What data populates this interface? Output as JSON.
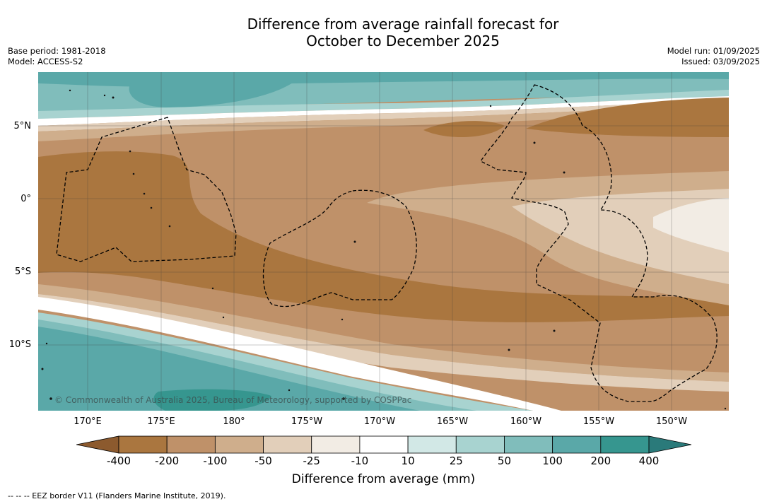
{
  "title": {
    "line1": "Difference from average rainfall forecast for",
    "line2": "October to December 2025"
  },
  "meta_left": {
    "base_period": "Base period: 1981-2018",
    "model": "Model: ACCESS-S2"
  },
  "meta_right": {
    "model_run": "Model run: 01/09/2025",
    "issued": "Issued: 03/09/2025"
  },
  "map": {
    "latitude_labels": [
      "5°N",
      "0°",
      "5°S",
      "10°S"
    ],
    "longitude_labels": [
      "170°E",
      "175°E",
      "180°",
      "175°W",
      "170°W",
      "165°W",
      "160°W",
      "155°W",
      "150°W"
    ],
    "copyright": "© Commonwealth of Australia 2025, Bureau of Meteorology, supported by COSPPac",
    "features": [
      "rainfall anomaly shading",
      "EEZ boundaries (dashed)",
      "island coastlines",
      "graticule lines"
    ]
  },
  "colorbar": {
    "ticks": [
      "-400",
      "-200",
      "-100",
      "-50",
      "-25",
      "-10",
      "10",
      "25",
      "50",
      "100",
      "200",
      "400"
    ],
    "colors": {
      "below_min": "#8c5a2e",
      "bins": [
        "#aa763f",
        "#bf9169",
        "#cfae8c",
        "#e2cfba",
        "#f2ece4",
        "#ffffff",
        "#d2e8e6",
        "#a8d3d0",
        "#80bdbb",
        "#5aa8a8",
        "#36968f"
      ],
      "above_max": "#2a7a7a"
    },
    "label": "Difference from average (mm)"
  },
  "footnote": "--  --  -- EEZ border V11 (Flanders Marine Institute, 2019)."
}
